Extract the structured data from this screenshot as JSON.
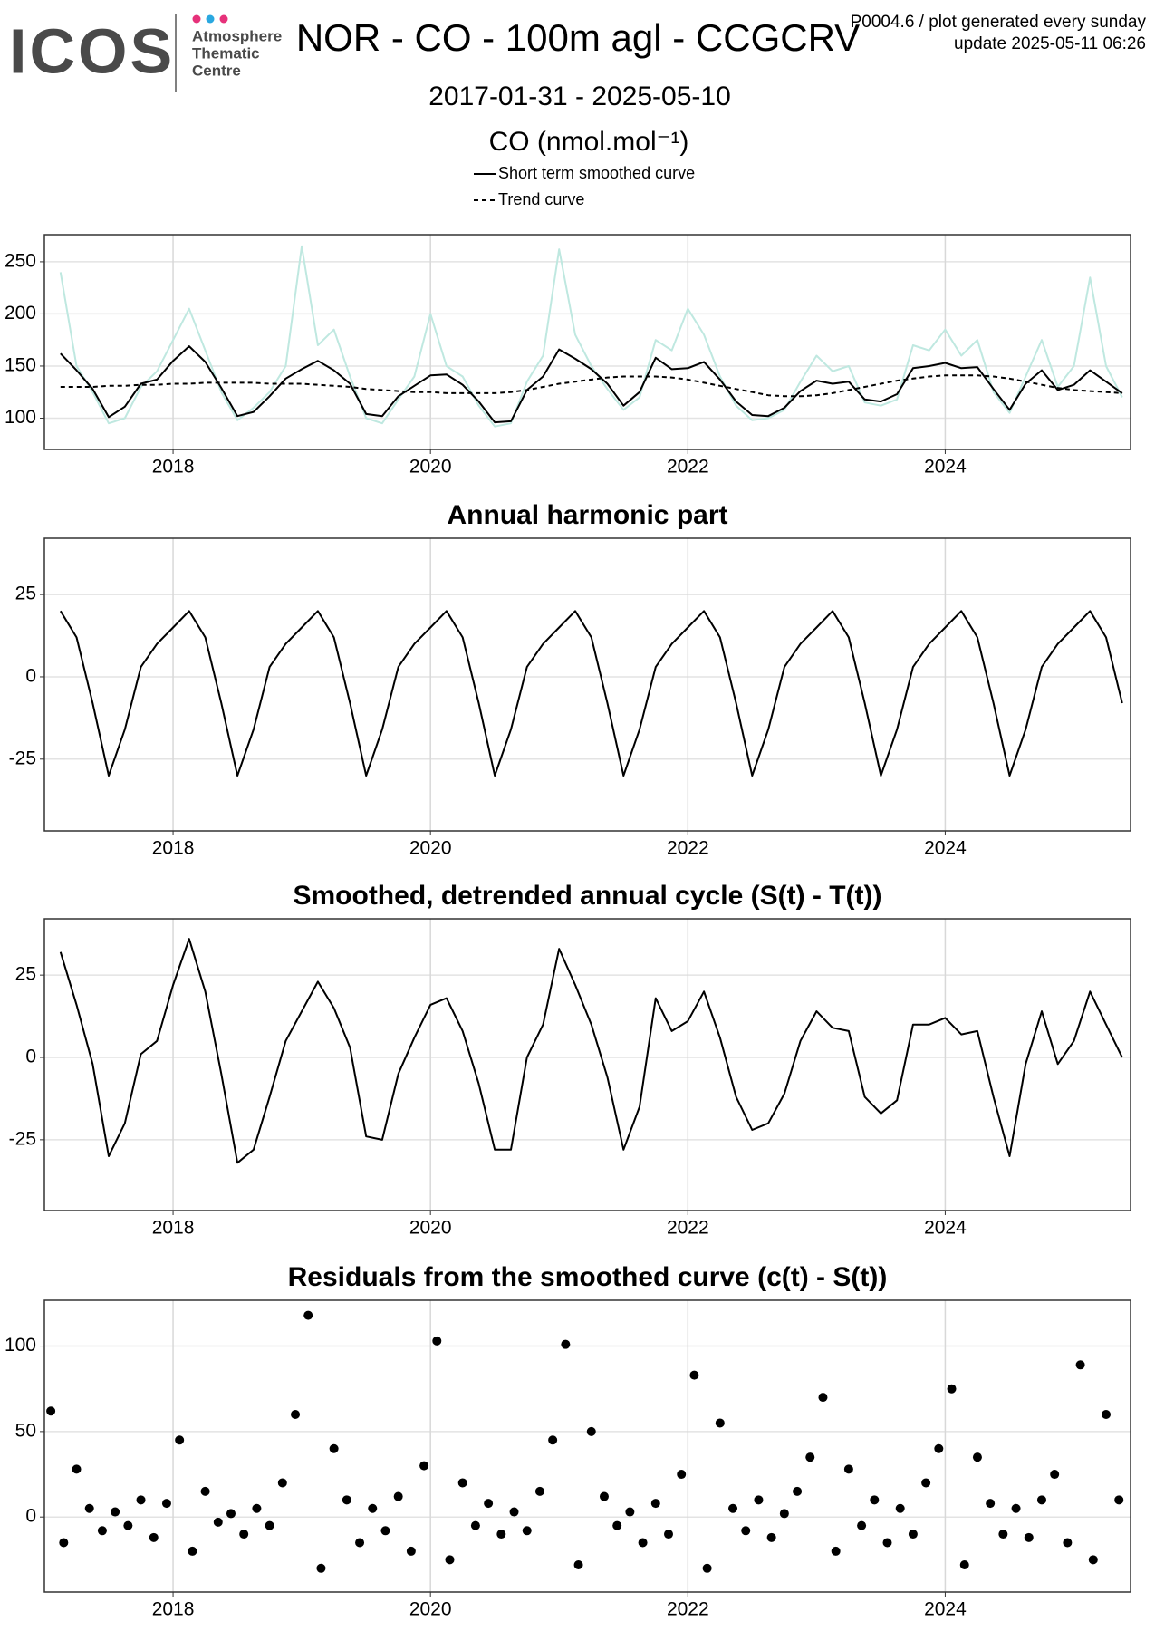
{
  "header": {
    "logo": "ICOS",
    "org": [
      "Atmosphere",
      "Thematic",
      "Centre"
    ],
    "info": [
      "P0004.6 / plot generated every sunday",
      "update  2025-05-11 06:26"
    ]
  },
  "chart_data": [
    {
      "type": "line",
      "title": "NOR - CO - 100m agl - CCGCRV",
      "subtitle": "2017-01-31 - 2025-05-10",
      "y_label": "CO (nmol.mol⁻¹)",
      "x": [
        2017.125,
        2017.25,
        2017.375,
        2017.5,
        2017.625,
        2017.75,
        2017.875,
        2018,
        2018.125,
        2018.25,
        2018.375,
        2018.5,
        2018.625,
        2018.75,
        2018.875,
        2019,
        2019.125,
        2019.25,
        2019.375,
        2019.5,
        2019.625,
        2019.75,
        2019.875,
        2020,
        2020.125,
        2020.25,
        2020.375,
        2020.5,
        2020.625,
        2020.75,
        2020.875,
        2021,
        2021.125,
        2021.25,
        2021.375,
        2021.5,
        2021.625,
        2021.75,
        2021.875,
        2022,
        2022.125,
        2022.25,
        2022.375,
        2022.5,
        2022.625,
        2022.75,
        2022.875,
        2023,
        2023.125,
        2023.25,
        2023.375,
        2023.5,
        2023.625,
        2023.75,
        2023.875,
        2024,
        2024.125,
        2024.25,
        2024.375,
        2024.5,
        2024.625,
        2024.75,
        2024.875,
        2025,
        2025.125,
        2025.25,
        2025.375
      ],
      "series": [
        {
          "color": "#bfe8e0",
          "width": 2,
          "values": [
            240,
            150,
            125,
            95,
            100,
            130,
            145,
            175,
            205,
            165,
            125,
            98,
            110,
            125,
            150,
            265,
            170,
            185,
            140,
            100,
            95,
            118,
            140,
            200,
            150,
            140,
            112,
            92,
            95,
            135,
            160,
            262,
            180,
            150,
            128,
            108,
            120,
            175,
            165,
            205,
            180,
            140,
            112,
            98,
            100,
            108,
            135,
            160,
            145,
            150,
            115,
            112,
            118,
            170,
            165,
            185,
            160,
            175,
            125,
            105,
            140,
            175,
            130,
            150,
            235,
            150,
            120
          ]
        },
        {
          "name": "Short term smoothed curve",
          "color": "#000000",
          "dash": false,
          "width": 2,
          "values": [
            162,
            146,
            128,
            101,
            111,
            133,
            137,
            155,
            169,
            154,
            129,
            102,
            106,
            121,
            138,
            147,
            155,
            146,
            133,
            104,
            102,
            121,
            131,
            141,
            142,
            132,
            116,
            96,
            97,
            127,
            140,
            166,
            157,
            147,
            133,
            112,
            125,
            158,
            147,
            148,
            154,
            137,
            116,
            103,
            102,
            110,
            126,
            136,
            133,
            135,
            118,
            116,
            123,
            148,
            150,
            153,
            148,
            149,
            128,
            108,
            133,
            146,
            127,
            132,
            146,
            135,
            124
          ]
        },
        {
          "name": "Trend curve",
          "color": "#000000",
          "dash": true,
          "width": 2,
          "values": [
            130,
            130,
            130,
            131,
            131,
            132,
            132,
            133,
            133,
            134,
            134,
            134,
            134,
            133,
            133,
            133,
            132,
            131,
            130,
            128,
            127,
            126,
            125,
            125,
            124,
            124,
            124,
            124,
            125,
            127,
            130,
            133,
            135,
            137,
            139,
            140,
            140,
            140,
            139,
            137,
            134,
            131,
            128,
            125,
            122,
            121,
            121,
            122,
            124,
            127,
            130,
            133,
            136,
            138,
            140,
            141,
            141,
            141,
            140,
            138,
            135,
            132,
            129,
            127,
            126,
            125,
            124
          ]
        }
      ],
      "xlim": [
        2017.0,
        2025.44
      ],
      "xticks": [
        2018,
        2020,
        2022,
        2024
      ],
      "ylim": [
        70,
        276
      ],
      "yticks": [
        100,
        150,
        200,
        250
      ],
      "grid": true
    },
    {
      "type": "line",
      "title": "Annual harmonic part",
      "x": [
        2017.125,
        2017.25,
        2017.375,
        2017.5,
        2017.625,
        2017.75,
        2017.875,
        2018,
        2018.125,
        2018.25,
        2018.375,
        2018.5,
        2018.625,
        2018.75,
        2018.875,
        2019,
        2019.125,
        2019.25,
        2019.375,
        2019.5,
        2019.625,
        2019.75,
        2019.875,
        2020,
        2020.125,
        2020.25,
        2020.375,
        2020.5,
        2020.625,
        2020.75,
        2020.875,
        2021,
        2021.125,
        2021.25,
        2021.375,
        2021.5,
        2021.625,
        2021.75,
        2021.875,
        2022,
        2022.125,
        2022.25,
        2022.375,
        2022.5,
        2022.625,
        2022.75,
        2022.875,
        2023,
        2023.125,
        2023.25,
        2023.375,
        2023.5,
        2023.625,
        2023.75,
        2023.875,
        2024,
        2024.125,
        2024.25,
        2024.375,
        2024.5,
        2024.625,
        2024.75,
        2024.875,
        2025,
        2025.125,
        2025.25,
        2025.375
      ],
      "series": [
        {
          "color": "#000000",
          "width": 2,
          "values": [
            20,
            12,
            -8,
            -30,
            -16,
            3,
            10,
            15,
            20,
            12,
            -8,
            -30,
            -16,
            3,
            10,
            15,
            20,
            12,
            -8,
            -30,
            -16,
            3,
            10,
            15,
            20,
            12,
            -8,
            -30,
            -16,
            3,
            10,
            15,
            20,
            12,
            -8,
            -30,
            -16,
            3,
            10,
            15,
            20,
            12,
            -8,
            -30,
            -16,
            3,
            10,
            15,
            20,
            12,
            -8,
            -30,
            -16,
            3,
            10,
            15,
            20,
            12,
            -8,
            -30,
            -16,
            3,
            10,
            15,
            20,
            12,
            -8
          ]
        }
      ],
      "xlim": [
        2017.0,
        2025.44
      ],
      "xticks": [
        2018,
        2020,
        2022,
        2024
      ],
      "ylim": [
        -46.8,
        42.1
      ],
      "yticks": [
        -25,
        0,
        25
      ],
      "grid": true
    },
    {
      "type": "line",
      "title": "Smoothed, detrended annual cycle (S(t) - T(t))",
      "x": [
        2017.125,
        2017.25,
        2017.375,
        2017.5,
        2017.625,
        2017.75,
        2017.875,
        2018,
        2018.125,
        2018.25,
        2018.375,
        2018.5,
        2018.625,
        2018.75,
        2018.875,
        2019,
        2019.125,
        2019.25,
        2019.375,
        2019.5,
        2019.625,
        2019.75,
        2019.875,
        2020,
        2020.125,
        2020.25,
        2020.375,
        2020.5,
        2020.625,
        2020.75,
        2020.875,
        2021,
        2021.125,
        2021.25,
        2021.375,
        2021.5,
        2021.625,
        2021.75,
        2021.875,
        2022,
        2022.125,
        2022.25,
        2022.375,
        2022.5,
        2022.625,
        2022.75,
        2022.875,
        2023,
        2023.125,
        2023.25,
        2023.375,
        2023.5,
        2023.625,
        2023.75,
        2023.875,
        2024,
        2024.125,
        2024.25,
        2024.375,
        2024.5,
        2024.625,
        2024.75,
        2024.875,
        2025,
        2025.125,
        2025.25,
        2025.375
      ],
      "series": [
        {
          "color": "#000000",
          "width": 2,
          "values": [
            32,
            16,
            -2,
            -30,
            -20,
            1,
            5,
            22,
            36,
            20,
            -5,
            -32,
            -28,
            -12,
            5,
            14,
            23,
            15,
            3,
            -24,
            -25,
            -5,
            6,
            16,
            18,
            8,
            -8,
            -28,
            -28,
            0,
            10,
            33,
            22,
            10,
            -6,
            -28,
            -15,
            18,
            8,
            11,
            20,
            6,
            -12,
            -22,
            -20,
            -11,
            5,
            14,
            9,
            8,
            -12,
            -17,
            -13,
            10,
            10,
            12,
            7,
            8,
            -12,
            -30,
            -2,
            14,
            -2,
            5,
            20,
            10,
            0
          ]
        }
      ],
      "xlim": [
        2017.0,
        2025.44
      ],
      "xticks": [
        2018,
        2020,
        2022,
        2024
      ],
      "ylim": [
        -46.5,
        42.1
      ],
      "yticks": [
        -25,
        0,
        25
      ],
      "grid": true
    },
    {
      "type": "scatter",
      "title": "Residuals from the smoothed curve (c(t) - S(t))",
      "x": [
        2017.05,
        2017.15,
        2017.25,
        2017.35,
        2017.45,
        2017.55,
        2017.65,
        2017.75,
        2017.85,
        2017.95,
        2018.05,
        2018.15,
        2018.25,
        2018.35,
        2018.45,
        2018.55,
        2018.65,
        2018.75,
        2018.85,
        2018.95,
        2019.05,
        2019.15,
        2019.25,
        2019.35,
        2019.45,
        2019.55,
        2019.65,
        2019.75,
        2019.85,
        2019.95,
        2020.05,
        2020.15,
        2020.25,
        2020.35,
        2020.45,
        2020.55,
        2020.65,
        2020.75,
        2020.85,
        2020.95,
        2021.05,
        2021.15,
        2021.25,
        2021.35,
        2021.45,
        2021.55,
        2021.65,
        2021.75,
        2021.85,
        2021.95,
        2022.05,
        2022.15,
        2022.25,
        2022.35,
        2022.45,
        2022.55,
        2022.65,
        2022.75,
        2022.85,
        2022.95,
        2023.05,
        2023.15,
        2023.25,
        2023.35,
        2023.45,
        2023.55,
        2023.65,
        2023.75,
        2023.85,
        2023.95,
        2024.05,
        2024.15,
        2024.25,
        2024.35,
        2024.45,
        2024.55,
        2024.65,
        2024.75,
        2024.85,
        2024.95,
        2025.05,
        2025.15,
        2025.25,
        2025.35
      ],
      "series": [
        {
          "color": "#000000",
          "values": [
            62,
            -15,
            28,
            5,
            -8,
            3,
            -5,
            10,
            -12,
            8,
            45,
            -20,
            15,
            -3,
            2,
            -10,
            5,
            -5,
            20,
            60,
            118,
            -30,
            40,
            10,
            -15,
            5,
            -8,
            12,
            -20,
            30,
            103,
            -25,
            20,
            -5,
            8,
            -10,
            3,
            -8,
            15,
            45,
            101,
            -28,
            50,
            12,
            -5,
            3,
            -15,
            8,
            -10,
            25,
            83,
            -30,
            55,
            5,
            -8,
            10,
            -12,
            2,
            15,
            35,
            70,
            -20,
            28,
            -5,
            10,
            -15,
            5,
            -10,
            20,
            40,
            75,
            -28,
            35,
            8,
            -10,
            5,
            -12,
            10,
            25,
            -15,
            89,
            -25,
            60,
            10
          ]
        }
      ],
      "xlim": [
        2017.0,
        2025.44
      ],
      "xticks": [
        2018,
        2020,
        2022,
        2024
      ],
      "ylim": [
        -43.9,
        126.8
      ],
      "yticks": [
        0,
        50,
        100
      ],
      "grid": true
    }
  ]
}
